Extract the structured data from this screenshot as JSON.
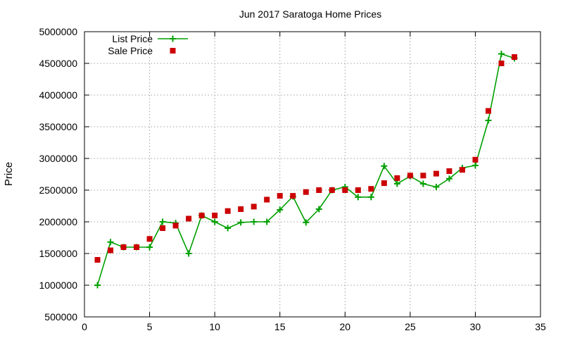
{
  "chart_data": {
    "type": "line",
    "title": "Jun 2017 Saratoga Home Prices",
    "xlabel": "",
    "ylabel": "Price",
    "xlim": [
      0,
      35
    ],
    "ylim": [
      500000,
      5000000
    ],
    "xticks": [
      0,
      5,
      10,
      15,
      20,
      25,
      30,
      35
    ],
    "yticks": [
      500000,
      1000000,
      1500000,
      2000000,
      2500000,
      3000000,
      3500000,
      4000000,
      4500000,
      5000000
    ],
    "grid": true,
    "legend_position": "top-left",
    "series": [
      {
        "name": "List Price",
        "style": "line-with-plus-markers",
        "color": "#00a000",
        "x": [
          1,
          2,
          3,
          4,
          5,
          6,
          7,
          8,
          9,
          10,
          11,
          12,
          13,
          14,
          15,
          16,
          17,
          18,
          19,
          20,
          21,
          22,
          23,
          24,
          25,
          26,
          27,
          28,
          29,
          30,
          31,
          32,
          33
        ],
        "y": [
          1000000,
          1680000,
          1600000,
          1600000,
          1600000,
          2000000,
          1980000,
          1500000,
          2100000,
          2000000,
          1900000,
          1990000,
          2000000,
          2000000,
          2190000,
          2400000,
          1990000,
          2200000,
          2500000,
          2550000,
          2390000,
          2390000,
          2880000,
          2600000,
          2720000,
          2600000,
          2550000,
          2680000,
          2850000,
          2890000,
          3600000,
          4650000,
          4580000
        ]
      },
      {
        "name": "Sale Price",
        "style": "square-markers",
        "color": "#cc0000",
        "x": [
          1,
          2,
          3,
          4,
          5,
          6,
          7,
          8,
          9,
          10,
          11,
          12,
          13,
          14,
          15,
          16,
          17,
          18,
          19,
          20,
          21,
          22,
          23,
          24,
          25,
          26,
          27,
          28,
          29,
          30,
          31,
          32,
          33
        ],
        "y": [
          1400000,
          1550000,
          1600000,
          1600000,
          1730000,
          1900000,
          1940000,
          2050000,
          2100000,
          2100000,
          2170000,
          2200000,
          2240000,
          2350000,
          2410000,
          2410000,
          2470000,
          2500000,
          2500000,
          2500000,
          2500000,
          2520000,
          2610000,
          2690000,
          2730000,
          2730000,
          2760000,
          2800000,
          2820000,
          2980000,
          3750000,
          4500000,
          4600000
        ]
      }
    ]
  }
}
